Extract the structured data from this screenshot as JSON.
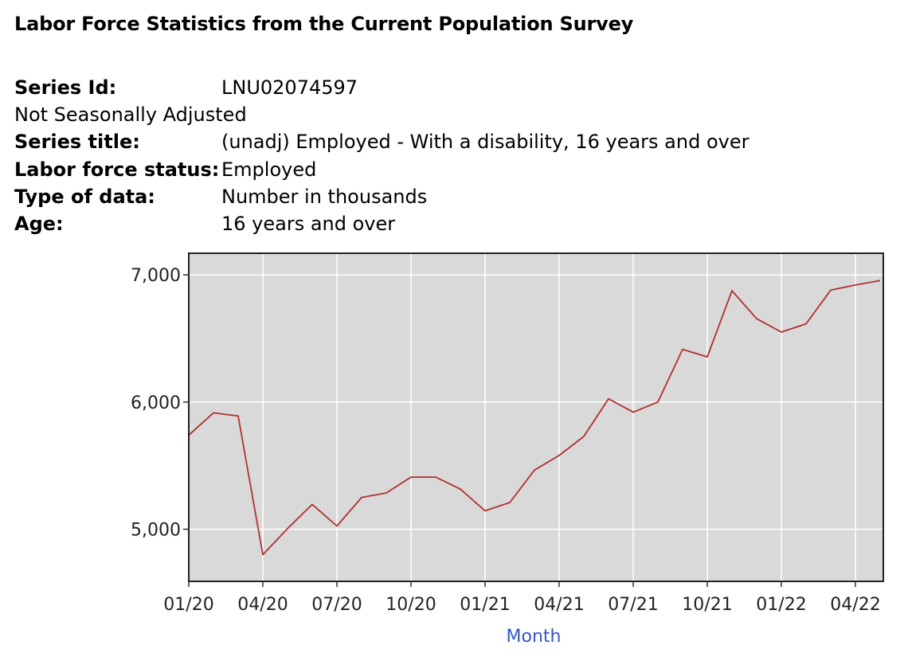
{
  "header": {
    "title": "Labor Force Statistics from the Current Population Survey"
  },
  "series_info": {
    "series_id_label": "Series Id:",
    "series_id": "LNU02074597",
    "adjustment": "Not Seasonally Adjusted",
    "series_title_label": "Series title:",
    "series_title": "(unadj) Employed - With a disability, 16 years and over",
    "labor_force_status_label": "Labor force status:",
    "labor_force_status": "Employed",
    "type_of_data_label": "Type of data:",
    "type_of_data": "Number in thousands",
    "age_label": "Age:",
    "age": "16 years and over"
  },
  "chart_data": {
    "type": "line",
    "title": "",
    "xlabel": "Month",
    "ylabel": "",
    "x": [
      "01/20",
      "02/20",
      "03/20",
      "04/20",
      "05/20",
      "06/20",
      "07/20",
      "08/20",
      "09/20",
      "10/20",
      "11/20",
      "12/20",
      "01/21",
      "02/21",
      "03/21",
      "04/21",
      "05/21",
      "06/21",
      "07/21",
      "08/21",
      "09/21",
      "10/21",
      "11/21",
      "12/21",
      "01/22",
      "02/22",
      "03/22",
      "04/22",
      "05/22"
    ],
    "x_ticks": [
      "01/20",
      "04/20",
      "07/20",
      "10/20",
      "01/21",
      "04/21",
      "07/21",
      "10/21",
      "01/22",
      "04/22"
    ],
    "y_ticks": [
      "5,000",
      "6,000",
      "7,000"
    ],
    "y_tick_values": [
      5000,
      6000,
      7000
    ],
    "ylim": [
      4590,
      7170
    ],
    "grid": true,
    "series": [
      {
        "name": "(unadj) Employed - With a disability, 16 years and over",
        "color": "#b03030",
        "values": [
          5740,
          5915,
          5890,
          4800,
          5005,
          5195,
          5025,
          5250,
          5285,
          5410,
          5410,
          5315,
          5145,
          5210,
          5465,
          5580,
          5730,
          6025,
          5920,
          6000,
          6415,
          6355,
          6875,
          6655,
          6550,
          6615,
          6880,
          6920,
          6955
        ]
      }
    ]
  },
  "colors": {
    "plot_background": "#d9d9d9",
    "grid": "#ffffff",
    "line": "#b03030",
    "axis_title": "#3355cc"
  }
}
